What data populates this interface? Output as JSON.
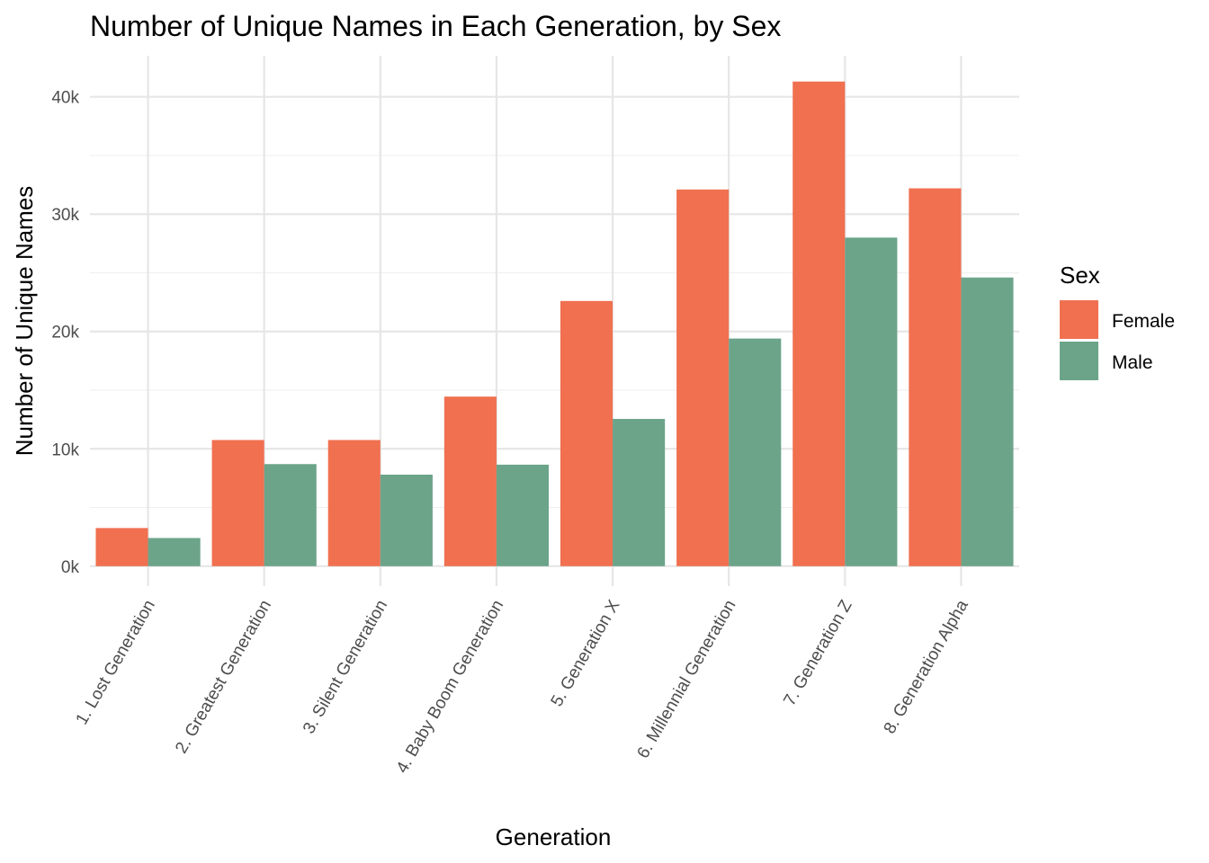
{
  "chart_data": {
    "type": "bar",
    "title": "Number of Unique Names in Each Generation, by Sex",
    "xlabel": "Generation",
    "ylabel": "Number of Unique Names",
    "categories": [
      "1. Lost Generation",
      "2. Greatest Generation",
      "3. Silent Generation",
      "4. Baby Boom Generation",
      "5. Generation X",
      "6. Millennial Generation",
      "7. Generation Z",
      "8. Generation Alpha"
    ],
    "series": [
      {
        "name": "Female",
        "color": "#F07050",
        "values": [
          3250,
          10750,
          10750,
          14450,
          22600,
          32100,
          41300,
          32200
        ]
      },
      {
        "name": "Male",
        "color": "#6CA48A",
        "values": [
          2400,
          8700,
          7800,
          8650,
          12550,
          19400,
          28000,
          24600
        ]
      }
    ],
    "ylim": [
      -1700,
      43500
    ],
    "y_ticks": [
      0,
      10000,
      20000,
      30000,
      40000
    ],
    "y_tick_labels": [
      "0k",
      "10k",
      "20k",
      "30k",
      "40k"
    ],
    "grid": true,
    "legend": {
      "title": "Sex",
      "position": "right"
    }
  }
}
